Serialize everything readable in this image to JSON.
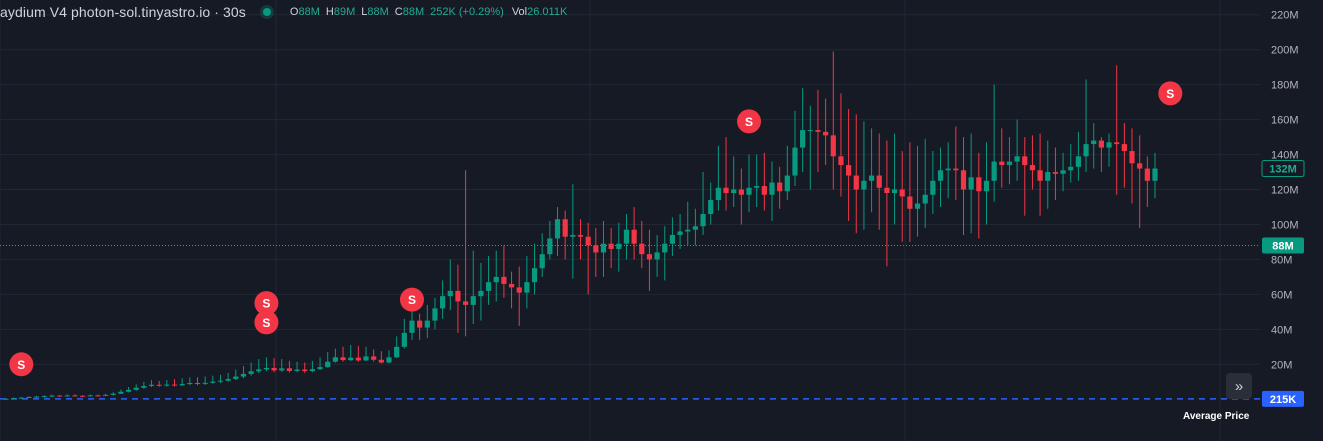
{
  "legend": {
    "title": "aydium V4 photon-sol.tinyastro.io · 30s",
    "open_key": "O",
    "open_val": "88M",
    "high_key": "H",
    "high_val": "89M",
    "low_key": "L",
    "low_val": "88M",
    "close_key": "C",
    "close_val": "88M",
    "change": "252K (+0.29%)",
    "vol_key": "Vol",
    "vol_val": "26.011K"
  },
  "colors": {
    "background": "#161a25",
    "grid": "#232734",
    "up": "#089981",
    "down": "#f23645",
    "dotted_line": "#22ab94",
    "avg_line": "#2962ff",
    "marker": "#f23645"
  },
  "price_line": {
    "value": 88,
    "label": "88M"
  },
  "last_price": {
    "value": 132,
    "label": "132M"
  },
  "average_price": {
    "value": 0.215,
    "label": "215K",
    "name": "Average Price"
  },
  "markers": [
    {
      "index": 2,
      "value": 20,
      "text": "S"
    },
    {
      "index": 34,
      "value": 55,
      "text": "S"
    },
    {
      "index": 34,
      "value": 44,
      "text": "S"
    },
    {
      "index": 53,
      "value": 57,
      "text": "S"
    },
    {
      "index": 97,
      "value": 159,
      "text": "S"
    },
    {
      "index": 152,
      "value": 175,
      "text": "S"
    }
  ],
  "chart_data": {
    "type": "candlestick",
    "title": "aydium V4 photon-sol.tinyastro.io · 30s",
    "y_unit": "M",
    "ylim": [
      -5,
      225
    ],
    "y_ticks": [
      20,
      40,
      60,
      80,
      100,
      120,
      140,
      160,
      180,
      200,
      220
    ],
    "y_tick_labels": [
      "20M",
      "40M",
      "60M",
      "80M",
      "100M",
      "120M",
      "140M",
      "160M",
      "180M",
      "200M",
      "220M"
    ],
    "grid": true,
    "candles": [
      [
        0,
        0.3,
        0,
        0.5
      ],
      [
        0.3,
        0.6,
        0.2,
        1
      ],
      [
        0.6,
        0.9,
        0.4,
        1.3
      ],
      [
        0.9,
        1.3,
        0.7,
        1.7
      ],
      [
        1.3,
        1.5,
        0.9,
        2
      ],
      [
        1.5,
        1.8,
        1.1,
        2.3
      ],
      [
        1.8,
        2.1,
        1.4,
        2.6
      ],
      [
        2.1,
        1.9,
        1.5,
        2.5
      ],
      [
        1.9,
        2.2,
        1.5,
        2.8
      ],
      [
        2.2,
        2,
        1.6,
        2.8
      ],
      [
        2,
        1.9,
        1.5,
        2.4
      ],
      [
        1.9,
        2.2,
        1.6,
        2.8
      ],
      [
        2.2,
        2,
        1.6,
        2.7
      ],
      [
        2,
        2.5,
        1.8,
        3.2
      ],
      [
        2.5,
        3.2,
        2.2,
        4
      ],
      [
        3.2,
        4.3,
        3,
        5.5
      ],
      [
        4.3,
        5.4,
        3.9,
        7
      ],
      [
        5.4,
        6.6,
        4.9,
        8.5
      ],
      [
        6.6,
        7.6,
        6,
        10
      ],
      [
        7.6,
        8.3,
        7,
        11
      ],
      [
        8.3,
        7.8,
        7.1,
        10.5
      ],
      [
        7.8,
        8.4,
        7.2,
        11
      ],
      [
        8.4,
        8,
        7.3,
        11.5
      ],
      [
        8,
        8.7,
        7.6,
        12
      ],
      [
        8.7,
        9.3,
        8,
        12.5
      ],
      [
        9.3,
        8.8,
        8,
        12.5
      ],
      [
        8.8,
        9.4,
        8.2,
        13
      ],
      [
        9.4,
        10.1,
        8.8,
        13.5
      ],
      [
        10.1,
        10.6,
        9.3,
        14
      ],
      [
        10.6,
        11.6,
        10,
        15
      ],
      [
        11.6,
        13,
        11,
        17
      ],
      [
        13,
        14.5,
        12,
        19
      ],
      [
        14.5,
        16,
        13.5,
        21
      ],
      [
        16,
        17.1,
        15,
        23
      ],
      [
        17.1,
        17.9,
        16,
        24
      ],
      [
        17.9,
        16.5,
        15.4,
        23.5
      ],
      [
        16.5,
        17.7,
        15.6,
        23
      ],
      [
        17.7,
        16.2,
        15.3,
        22
      ],
      [
        16.2,
        17,
        15.5,
        21.5
      ],
      [
        17,
        16.1,
        15,
        21
      ],
      [
        16.1,
        17.2,
        15.5,
        22
      ],
      [
        17.2,
        18.4,
        16.8,
        24
      ],
      [
        18.4,
        21.5,
        18,
        27
      ],
      [
        21.5,
        24,
        21,
        29
      ],
      [
        24,
        22.4,
        21.5,
        30
      ],
      [
        22.4,
        23.8,
        21.8,
        31
      ],
      [
        23.8,
        22.2,
        21.5,
        30.5
      ],
      [
        22.2,
        24.5,
        21.8,
        30
      ],
      [
        24.5,
        22.6,
        21.5,
        28.5
      ],
      [
        22.6,
        21,
        20.5,
        27.5
      ],
      [
        21,
        24,
        20.5,
        28
      ],
      [
        24,
        30,
        23.5,
        36
      ],
      [
        30,
        38,
        29,
        46
      ],
      [
        38,
        45,
        34,
        52
      ],
      [
        45,
        41,
        34,
        49
      ],
      [
        41,
        45,
        35,
        54
      ],
      [
        45,
        52,
        40,
        58
      ],
      [
        52,
        59,
        46,
        68
      ],
      [
        59,
        62,
        51,
        80
      ],
      [
        62,
        56,
        38,
        77
      ],
      [
        56,
        54,
        36,
        131
      ],
      [
        54,
        59,
        43,
        85
      ],
      [
        59,
        62,
        45,
        78
      ],
      [
        62,
        67,
        54,
        82
      ],
      [
        67,
        70,
        56,
        85
      ],
      [
        70,
        66,
        58,
        88
      ],
      [
        66,
        64,
        52,
        73
      ],
      [
        64,
        61,
        42,
        76
      ],
      [
        61,
        67,
        52,
        82
      ],
      [
        67,
        75,
        60,
        89
      ],
      [
        75,
        83,
        70,
        95
      ],
      [
        83,
        92,
        80,
        102
      ],
      [
        92,
        103,
        82,
        110
      ],
      [
        103,
        93,
        80,
        108
      ],
      [
        93,
        94,
        69,
        123
      ],
      [
        94,
        93,
        80,
        103
      ],
      [
        93,
        88,
        60,
        101
      ],
      [
        88,
        84,
        70,
        98
      ],
      [
        84,
        89,
        70,
        102
      ],
      [
        89,
        86,
        75,
        98
      ],
      [
        86,
        89,
        73,
        101
      ],
      [
        89,
        97,
        80,
        106
      ],
      [
        97,
        89,
        80,
        110
      ],
      [
        89,
        83,
        75,
        102
      ],
      [
        83,
        80,
        62,
        97
      ],
      [
        80,
        84,
        70,
        94
      ],
      [
        84,
        89,
        68,
        99
      ],
      [
        89,
        94,
        82,
        104
      ],
      [
        94,
        96,
        86,
        106
      ],
      [
        96,
        97,
        88,
        113
      ],
      [
        97,
        99,
        88,
        109
      ],
      [
        99,
        106,
        94,
        130
      ],
      [
        106,
        114,
        100,
        124
      ],
      [
        114,
        121,
        108,
        145
      ],
      [
        121,
        118,
        108,
        150
      ],
      [
        118,
        120,
        110,
        139
      ],
      [
        120,
        117,
        100,
        132
      ],
      [
        117,
        121,
        107,
        140
      ],
      [
        121,
        122,
        110,
        140
      ],
      [
        122,
        117,
        108,
        141
      ],
      [
        117,
        124,
        102,
        136
      ],
      [
        124,
        119,
        109,
        133
      ],
      [
        119,
        128,
        114,
        145
      ],
      [
        128,
        144,
        122,
        165
      ],
      [
        144,
        154,
        130,
        178
      ],
      [
        154,
        154,
        120,
        168
      ],
      [
        154,
        153,
        130,
        177
      ],
      [
        153,
        151,
        134,
        172
      ],
      [
        151,
        139,
        120,
        199
      ],
      [
        139,
        134,
        116,
        175
      ],
      [
        134,
        128,
        102,
        166
      ],
      [
        128,
        120,
        95,
        163
      ],
      [
        120,
        125,
        97,
        159
      ],
      [
        125,
        128,
        107,
        155
      ],
      [
        128,
        121,
        97,
        152
      ],
      [
        121,
        118,
        76,
        148
      ],
      [
        118,
        120,
        100,
        152
      ],
      [
        120,
        116,
        90,
        142
      ],
      [
        116,
        109,
        90,
        147
      ],
      [
        109,
        112,
        93,
        145
      ],
      [
        112,
        117,
        98,
        149
      ],
      [
        117,
        125,
        106,
        142
      ],
      [
        125,
        131,
        110,
        144
      ],
      [
        131,
        132,
        115,
        147
      ],
      [
        132,
        131,
        114,
        156
      ],
      [
        131,
        120,
        94,
        150
      ],
      [
        120,
        127,
        95,
        152
      ],
      [
        127,
        119,
        92,
        141
      ],
      [
        119,
        125,
        100,
        147
      ],
      [
        125,
        136,
        113,
        180
      ],
      [
        136,
        134,
        121,
        155
      ],
      [
        134,
        136,
        123,
        150
      ],
      [
        136,
        139,
        125,
        160
      ],
      [
        139,
        134,
        105,
        150
      ],
      [
        134,
        131,
        120,
        151
      ],
      [
        131,
        125,
        105,
        152
      ],
      [
        125,
        130,
        109,
        148
      ],
      [
        130,
        129,
        114,
        144
      ],
      [
        129,
        131,
        119,
        141
      ],
      [
        131,
        133,
        124,
        146
      ],
      [
        133,
        139,
        125,
        153
      ],
      [
        139,
        146,
        130,
        183
      ],
      [
        146,
        148,
        132,
        158
      ],
      [
        148,
        144,
        130,
        150
      ],
      [
        144,
        147,
        133,
        152
      ],
      [
        147,
        146,
        117,
        191
      ],
      [
        146,
        142,
        121,
        158
      ],
      [
        142,
        135,
        112,
        155
      ],
      [
        135,
        132,
        98,
        151
      ],
      [
        132,
        125,
        110,
        139
      ],
      [
        125,
        132,
        115,
        141
      ]
    ]
  }
}
